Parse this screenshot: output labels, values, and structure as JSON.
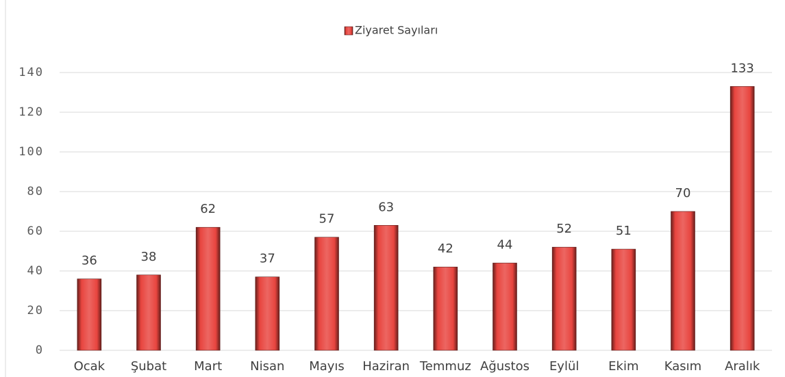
{
  "chart_data": {
    "type": "bar",
    "categories": [
      "Ocak",
      "Şubat",
      "Mart",
      "Nisan",
      "Mayıs",
      "Haziran",
      "Temmuz",
      "Ağustos",
      "Eylül",
      "Ekim",
      "Kasım",
      "Aralık"
    ],
    "series": [
      {
        "name": "Ziyaret Sayıları",
        "color": "#e8453f",
        "values": [
          36,
          38,
          62,
          37,
          57,
          63,
          42,
          44,
          52,
          51,
          70,
          133
        ]
      }
    ],
    "ylim": [
      0,
      140
    ],
    "yticks": [
      0,
      20,
      40,
      60,
      80,
      100,
      120,
      140
    ],
    "grid": true,
    "legend": "top",
    "data_labels": true
  }
}
